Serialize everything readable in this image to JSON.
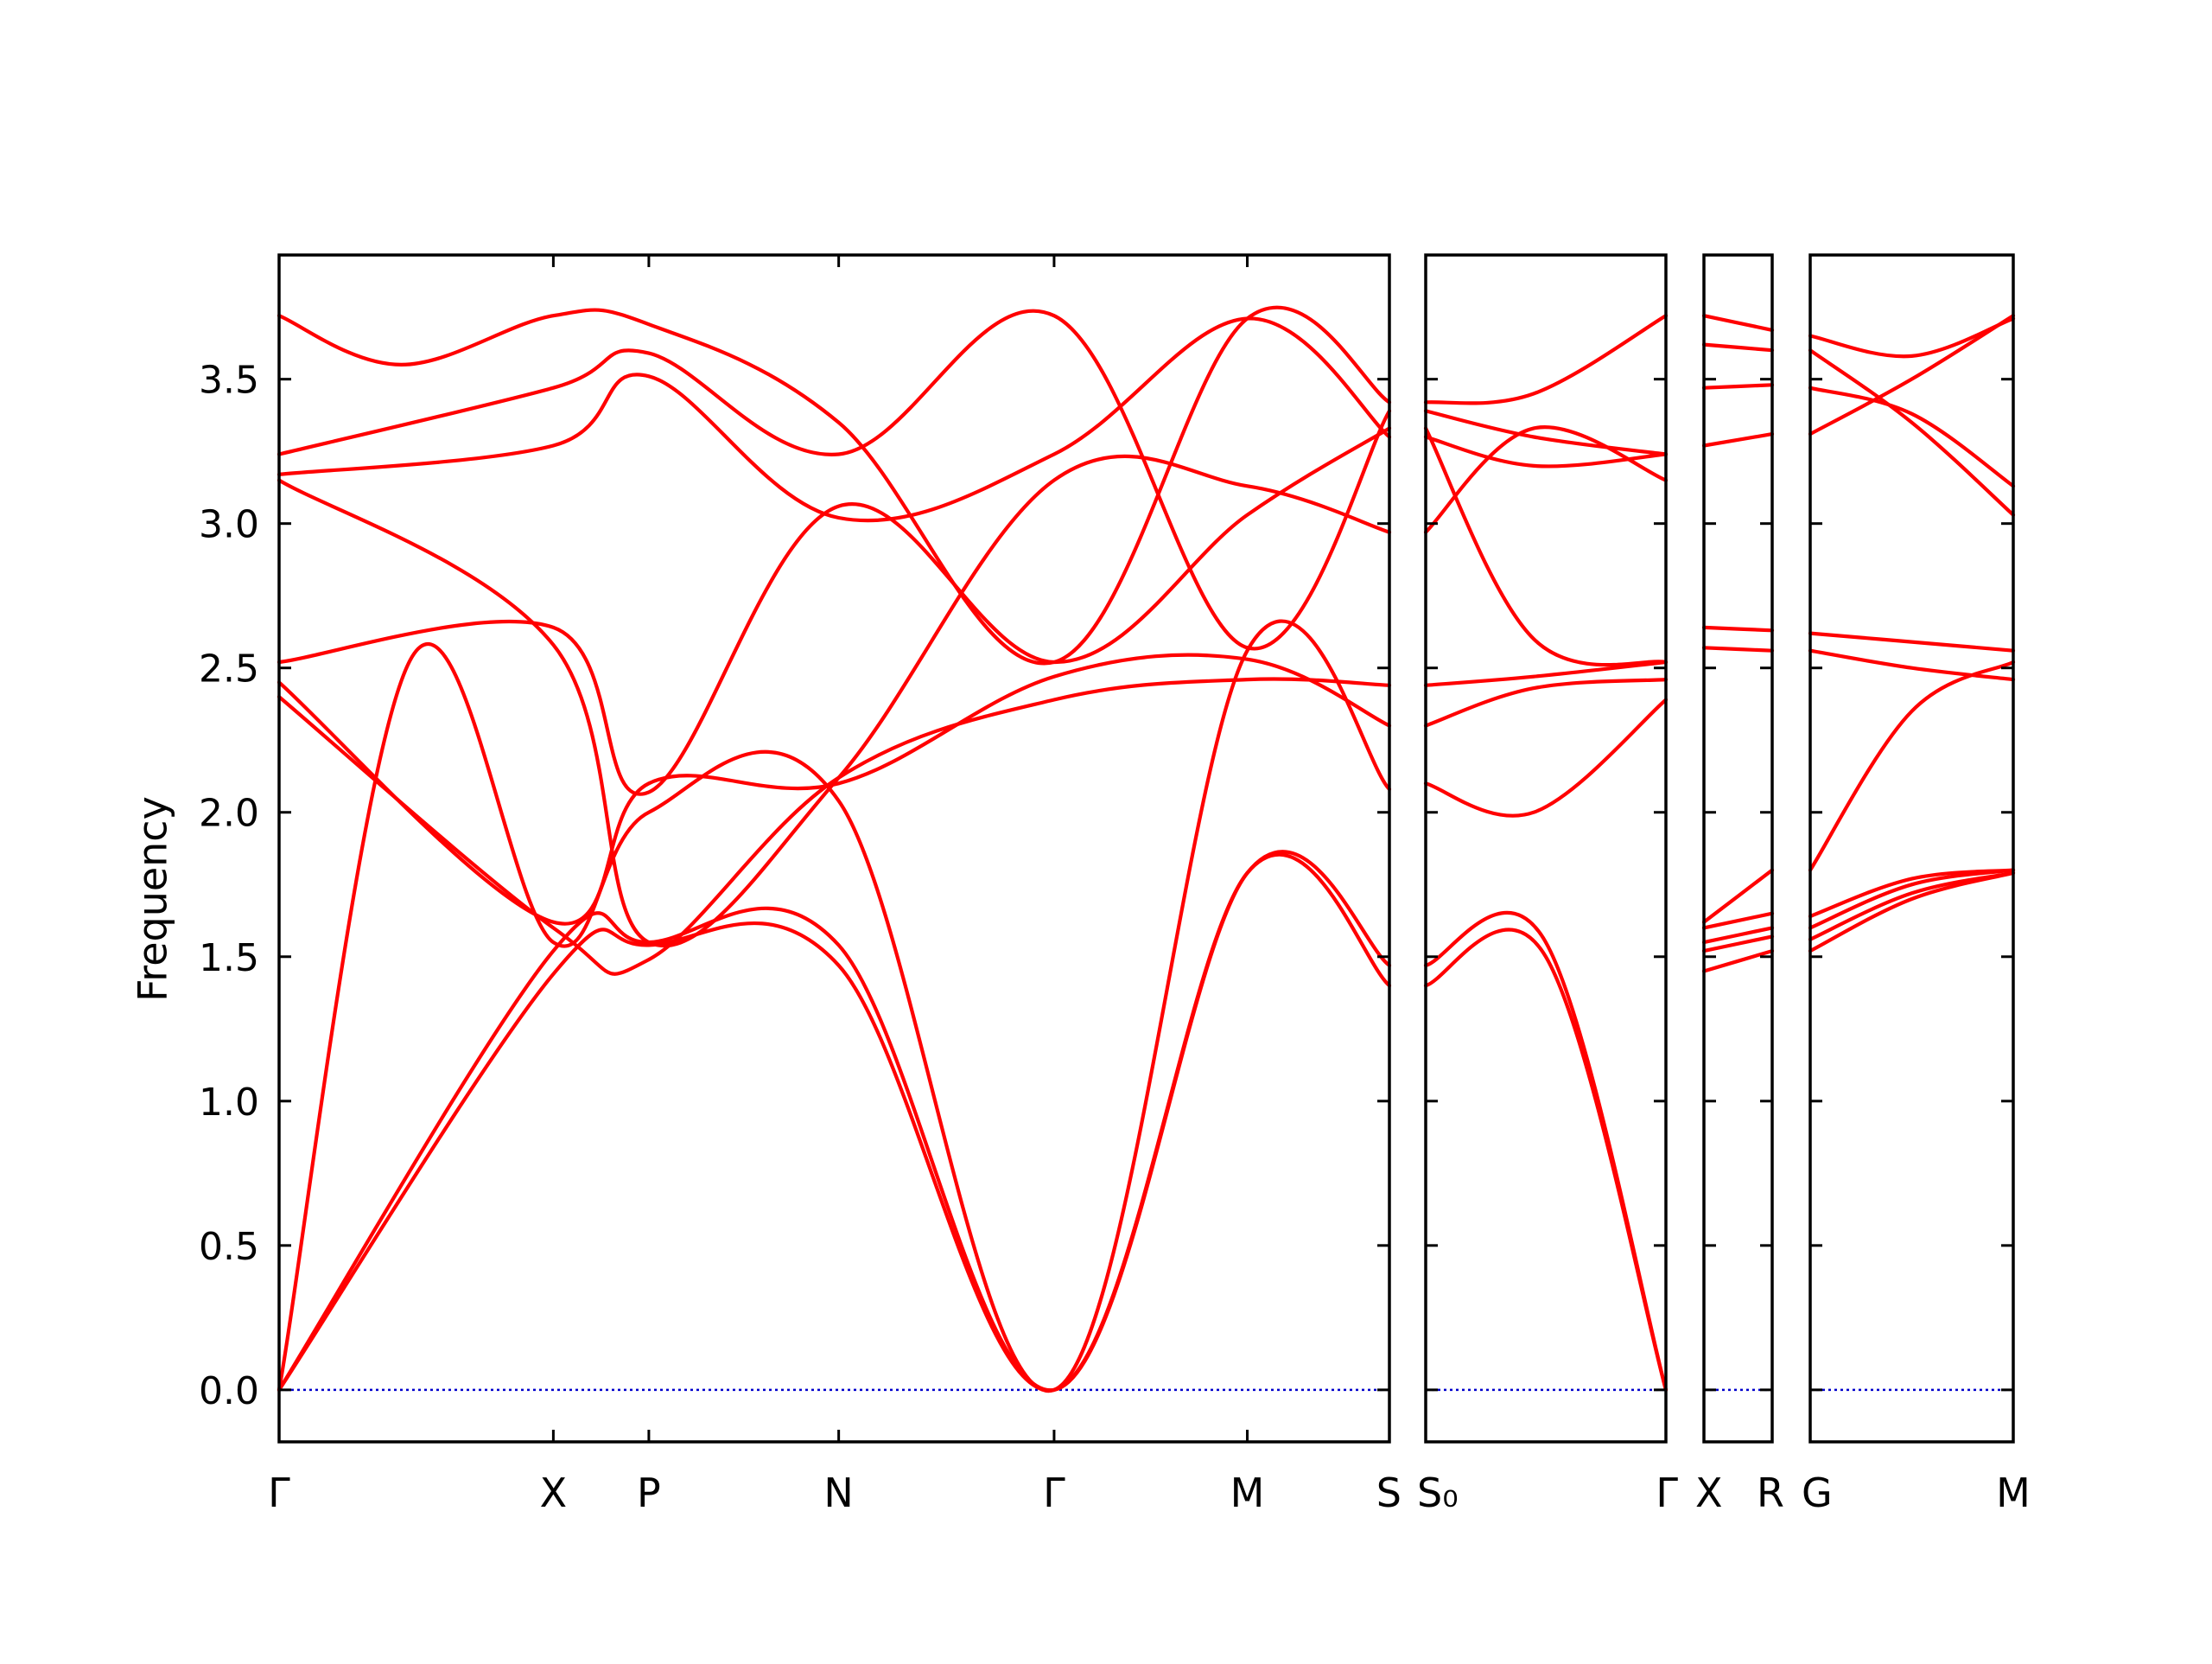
{
  "chart_data": {
    "type": "line",
    "ylabel": "Frequency",
    "ylim": [
      -0.18,
      3.93
    ],
    "yticks": [
      0.0,
      0.5,
      1.0,
      1.5,
      2.0,
      2.5,
      3.0,
      3.5
    ],
    "ytick_labels": [
      "0.0",
      "0.5",
      "1.0",
      "1.5",
      "2.0",
      "2.5",
      "3.0",
      "3.5"
    ],
    "line_color": "#ff0000",
    "zero_line_color": "#0000cc",
    "panels": [
      {
        "path_labels": [
          "Γ",
          "X",
          "P",
          "N",
          "Γ",
          "M",
          "S"
        ],
        "kpoints": [
          0,
          0.247,
          0.333,
          0.504,
          0.698,
          0.872,
          1
        ],
        "bands": [
          [
            [
              0,
              0
            ],
            [
              0.247,
              1.44
            ],
            [
              0.333,
              1.54
            ],
            [
              0.504,
              1.47
            ],
            [
              0.698,
              0
            ],
            [
              0.872,
              1.79
            ],
            [
              1,
              1.4
            ]
          ],
          [
            [
              0,
              0
            ],
            [
              0.247,
              1.52
            ],
            [
              0.333,
              1.55
            ],
            [
              0.504,
              1.54
            ],
            [
              0.698,
              0
            ],
            [
              0.872,
              1.79
            ],
            [
              1,
              1.47
            ]
          ],
          [
            [
              0,
              0
            ],
            [
              0.12,
              2.54
            ],
            [
              0.247,
              1.55
            ],
            [
              0.333,
              2.0
            ],
            [
              0.504,
              2.04
            ],
            [
              0.698,
              0
            ],
            [
              0.872,
              2.56
            ],
            [
              1,
              2.08
            ]
          ],
          [
            [
              0,
              2.4
            ],
            [
              0.247,
              1.6
            ],
            [
              0.333,
              1.49
            ],
            [
              0.504,
              2.12
            ],
            [
              0.698,
              2.39
            ],
            [
              0.872,
              2.46
            ],
            [
              1,
              2.44
            ]
          ],
          [
            [
              0,
              2.45
            ],
            [
              0.247,
              1.62
            ],
            [
              0.333,
              2.1
            ],
            [
              0.504,
              2.1
            ],
            [
              0.698,
              2.47
            ],
            [
              0.872,
              2.53
            ],
            [
              1,
              2.3
            ]
          ],
          [
            [
              0,
              2.52
            ],
            [
              0.247,
              2.64
            ],
            [
              0.333,
              2.07
            ],
            [
              0.504,
              3.06
            ],
            [
              0.698,
              2.52
            ],
            [
              0.872,
              3.03
            ],
            [
              1,
              3.33
            ]
          ],
          [
            [
              0,
              3.15
            ],
            [
              0.247,
              2.58
            ],
            [
              0.333,
              1.55
            ],
            [
              0.504,
              2.12
            ],
            [
              0.698,
              3.15
            ],
            [
              0.872,
              3.13
            ],
            [
              1,
              2.97
            ]
          ],
          [
            [
              0,
              3.17
            ],
            [
              0.247,
              3.27
            ],
            [
              0.333,
              3.51
            ],
            [
              0.504,
              3.02
            ],
            [
              0.698,
              3.24
            ],
            [
              0.872,
              3.71
            ],
            [
              1,
              3.3
            ]
          ],
          [
            [
              0,
              3.24
            ],
            [
              0.247,
              3.47
            ],
            [
              0.333,
              3.59
            ],
            [
              0.504,
              3.24
            ],
            [
              0.698,
              3.72
            ],
            [
              0.872,
              2.57
            ],
            [
              1,
              3.39
            ]
          ],
          [
            [
              0,
              3.72
            ],
            [
              0.11,
              3.55
            ],
            [
              0.247,
              3.72
            ],
            [
              0.333,
              3.69
            ],
            [
              0.504,
              3.35
            ],
            [
              0.698,
              2.52
            ],
            [
              0.872,
              3.71
            ],
            [
              1,
              3.42
            ]
          ]
        ]
      },
      {
        "path_labels": [
          "S₀",
          "Γ"
        ],
        "kpoints": [
          0,
          1
        ],
        "bands": [
          [
            [
              0,
              1.4
            ],
            [
              0.5,
              1.5
            ],
            [
              1,
              0
            ]
          ],
          [
            [
              0,
              1.47
            ],
            [
              0.5,
              1.55
            ],
            [
              1,
              0
            ]
          ],
          [
            [
              0,
              2.1
            ],
            [
              0.45,
              2.0
            ],
            [
              1,
              2.39
            ]
          ],
          [
            [
              0,
              2.3
            ],
            [
              0.45,
              2.43
            ],
            [
              1,
              2.46
            ]
          ],
          [
            [
              0,
              2.44
            ],
            [
              0.45,
              2.47
            ],
            [
              1,
              2.52
            ]
          ],
          [
            [
              0,
              2.97
            ],
            [
              0.45,
              3.33
            ],
            [
              1,
              3.15
            ]
          ],
          [
            [
              0,
              3.3
            ],
            [
              0.45,
              3.2
            ],
            [
              1,
              3.24
            ]
          ],
          [
            [
              0,
              3.33
            ],
            [
              0.45,
              2.6
            ],
            [
              1,
              2.52
            ]
          ],
          [
            [
              0,
              3.39
            ],
            [
              0.45,
              3.3
            ],
            [
              1,
              3.24
            ]
          ],
          [
            [
              0,
              3.42
            ],
            [
              0.45,
              3.45
            ],
            [
              1,
              3.72
            ]
          ]
        ]
      },
      {
        "path_labels": [
          "X",
          "R"
        ],
        "kpoints": [
          0,
          1
        ],
        "bands": [
          [
            [
              0,
              1.45
            ],
            [
              1,
              1.52
            ]
          ],
          [
            [
              0,
              1.52
            ],
            [
              1,
              1.57
            ]
          ],
          [
            [
              0,
              1.55
            ],
            [
              1,
              1.6
            ]
          ],
          [
            [
              0,
              1.6
            ],
            [
              1,
              1.65
            ]
          ],
          [
            [
              0,
              1.62
            ],
            [
              1,
              1.8
            ]
          ],
          [
            [
              0,
              2.57
            ],
            [
              1,
              2.56
            ]
          ],
          [
            [
              0,
              2.64
            ],
            [
              1,
              2.63
            ]
          ],
          [
            [
              0,
              3.27
            ],
            [
              1,
              3.31
            ]
          ],
          [
            [
              0,
              3.47
            ],
            [
              1,
              3.48
            ]
          ],
          [
            [
              0,
              3.62
            ],
            [
              1,
              3.6
            ]
          ],
          [
            [
              0,
              3.72
            ],
            [
              1,
              3.67
            ]
          ]
        ]
      },
      {
        "path_labels": [
          "G",
          "M"
        ],
        "kpoints": [
          0,
          1
        ],
        "bands": [
          [
            [
              0,
              1.52
            ],
            [
              0.5,
              1.7
            ],
            [
              1,
              1.79
            ]
          ],
          [
            [
              0,
              1.56
            ],
            [
              0.5,
              1.72
            ],
            [
              1,
              1.79
            ]
          ],
          [
            [
              0,
              1.6
            ],
            [
              0.5,
              1.75
            ],
            [
              1,
              1.8
            ]
          ],
          [
            [
              0,
              1.64
            ],
            [
              0.5,
              1.77
            ],
            [
              1,
              1.8
            ]
          ],
          [
            [
              0,
              1.8
            ],
            [
              0.5,
              2.35
            ],
            [
              1,
              2.52
            ]
          ],
          [
            [
              0,
              2.56
            ],
            [
              0.5,
              2.5
            ],
            [
              1,
              2.46
            ]
          ],
          [
            [
              0,
              2.62
            ],
            [
              0.5,
              2.59
            ],
            [
              1,
              2.56
            ]
          ],
          [
            [
              0,
              3.31
            ],
            [
              0.5,
              3.5
            ],
            [
              1,
              3.72
            ]
          ],
          [
            [
              0,
              3.47
            ],
            [
              0.5,
              3.38
            ],
            [
              1,
              3.13
            ]
          ],
          [
            [
              0,
              3.6
            ],
            [
              0.5,
              3.35
            ],
            [
              1,
              3.03
            ]
          ],
          [
            [
              0,
              3.65
            ],
            [
              0.5,
              3.58
            ],
            [
              1,
              3.71
            ]
          ]
        ]
      }
    ]
  }
}
